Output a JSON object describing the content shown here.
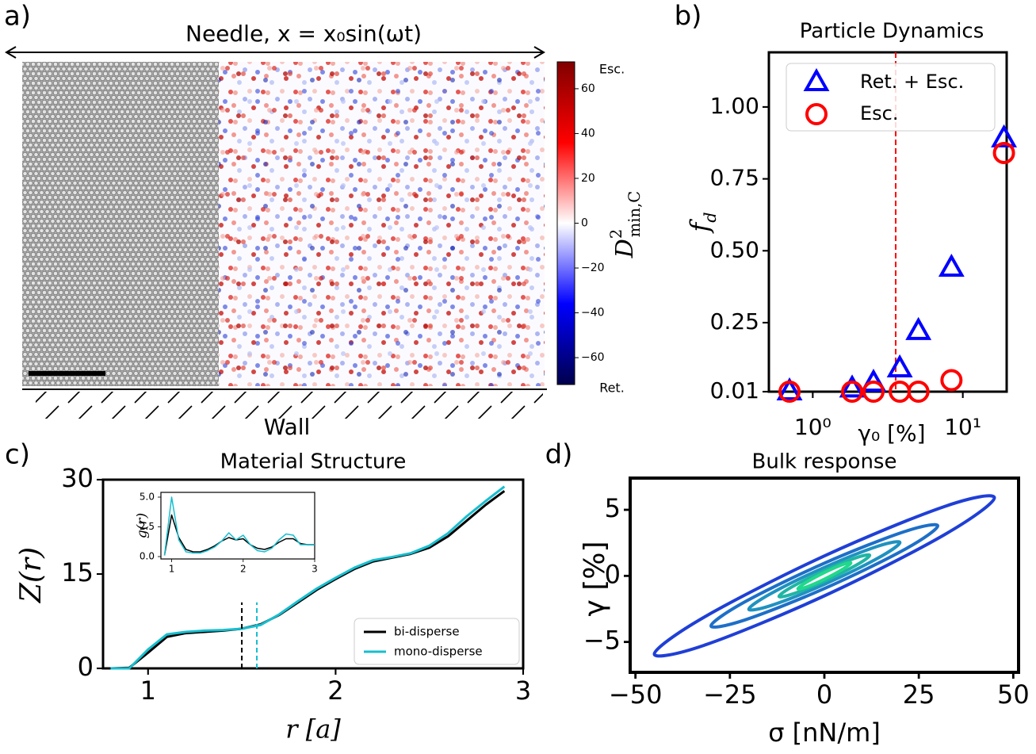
{
  "chart_data": [
    {
      "type": "image",
      "panel_label": "a)",
      "title": "Needle, x = x₀sin(ωt)",
      "bottom_label": "Wall",
      "colorbar": {
        "label": {
          "base": "D",
          "sup": "2",
          "sub": "min,C"
        },
        "lim": [
          -72,
          72
        ],
        "ticks": [
          {
            "value": -60,
            "label": "−60"
          },
          {
            "value": -40,
            "label": "−40"
          },
          {
            "value": -20,
            "label": "−20"
          },
          0,
          20,
          40,
          60
        ],
        "top_label": "Esc.",
        "bottom_label": "Ret."
      }
    },
    {
      "type": "scatter",
      "panel_label": "b)",
      "title": "Particle Dynamics",
      "xlabel": "γ₀ [%]",
      "ylabel": {
        "base": "f",
        "sub": "d"
      },
      "xscale": "log",
      "xlim": [
        0.51,
        19.6
      ],
      "xticks": [
        {
          "value": 1,
          "label": "10⁰"
        },
        {
          "value": 10,
          "label": "10¹"
        }
      ],
      "ylim": [
        0.01,
        1.19
      ],
      "yticks": [
        0.01,
        0.25,
        {
          "value": 0.5,
          "label": "0.50"
        },
        0.75,
        {
          "value": 1,
          "label": "1.00"
        }
      ],
      "legend": "upper left",
      "threshold_x": 3.57,
      "threshold_color": "#ff0000",
      "series": [
        {
          "name": "Ret. + Esc.",
          "color": "#0000ff",
          "marker": "triangle",
          "x": [
            0.7,
            1.83,
            2.54,
            3.8,
            5.06,
            8.4,
            18.8
          ],
          "values": [
            0.01,
            0.02,
            0.04,
            0.09,
            0.22,
            0.44,
            0.89
          ]
        },
        {
          "name": "Esc.",
          "color": "#ff0000",
          "marker": "circle",
          "x": [
            0.7,
            1.83,
            2.54,
            3.8,
            5.06,
            8.4,
            18.8
          ],
          "values": [
            0.01,
            0.01,
            0.01,
            0.01,
            0.01,
            0.05,
            0.84
          ]
        }
      ]
    },
    {
      "type": "line",
      "panel_label": "c)",
      "title": "Material Structure",
      "xlabel": "r [a]",
      "ylabel": "Z(r)",
      "xlim": [
        0.76,
        3
      ],
      "xticks": [
        1,
        2,
        3
      ],
      "ylim": [
        0,
        30
      ],
      "yticks": [
        0,
        15,
        30
      ],
      "legend": "lower right",
      "x": [
        0.8,
        0.9,
        1.0,
        1.1,
        1.2,
        1.3,
        1.4,
        1.5,
        1.6,
        1.7,
        1.8,
        1.9,
        2.0,
        2.1,
        2.2,
        2.3,
        2.4,
        2.5,
        2.6,
        2.7,
        2.8,
        2.9
      ],
      "series": [
        {
          "name": "bi-disperse",
          "color": "#000000",
          "values": [
            0,
            0.1,
            2.5,
            5.0,
            5.6,
            5.8,
            6.0,
            6.3,
            7.0,
            8.5,
            10.5,
            12.5,
            14.2,
            15.8,
            17.0,
            17.6,
            18.2,
            19.2,
            21.0,
            23.5,
            26.0,
            28.2
          ]
        },
        {
          "name": "mono-disperse",
          "color": "#17becf",
          "values": [
            0,
            0,
            3.0,
            5.4,
            5.8,
            6.0,
            6.1,
            6.3,
            6.9,
            8.6,
            10.7,
            12.7,
            14.4,
            16.0,
            17.2,
            17.7,
            18.3,
            19.5,
            21.5,
            24.2,
            26.6,
            28.9
          ]
        }
      ],
      "dashed_lines": [
        {
          "x": 1.5,
          "y": 10.5,
          "color": "#000000"
        },
        {
          "x": 1.58,
          "y": 10.5,
          "color": "#17becf"
        }
      ],
      "inset": {
        "ylabel": "g(r)",
        "xlim": [
          0.85,
          3
        ],
        "xticks": [
          1,
          2,
          3
        ],
        "ylim": [
          -0.2,
          5.4
        ],
        "yticks": [
          {
            "value": 0,
            "label": "0.0"
          },
          2.5,
          {
            "value": 5,
            "label": "5.0"
          }
        ],
        "x": [
          0.9,
          1.0,
          1.1,
          1.2,
          1.3,
          1.4,
          1.5,
          1.6,
          1.7,
          1.8,
          1.9,
          2.0,
          2.1,
          2.2,
          2.3,
          2.4,
          2.5,
          2.6,
          2.7,
          2.8,
          2.9,
          3.0
        ],
        "series": [
          {
            "color": "#000000",
            "values": [
              0.1,
              3.5,
              1.6,
              0.6,
              0.4,
              0.4,
              0.6,
              0.9,
              1.3,
              1.6,
              1.4,
              1.5,
              1.0,
              0.7,
              0.6,
              0.8,
              1.2,
              1.5,
              1.5,
              1.1,
              1.0,
              1.0
            ]
          },
          {
            "color": "#17becf",
            "values": [
              0.1,
              5.0,
              1.4,
              0.4,
              0.3,
              0.3,
              0.5,
              0.8,
              1.3,
              2.0,
              1.4,
              1.8,
              1.0,
              0.5,
              0.4,
              0.7,
              1.4,
              1.9,
              1.8,
              1.0,
              1.0,
              1.0
            ]
          }
        ]
      }
    },
    {
      "type": "line",
      "panel_label": "d)",
      "title": "Bulk response",
      "xlabel": "σ [nN/m]",
      "ylabel": "γ [%]",
      "closed": true,
      "xlim": [
        -51.4,
        51.4
      ],
      "xticks": [
        {
          "value": -50,
          "label": "−50"
        },
        {
          "value": -25,
          "label": "−25"
        },
        0,
        25,
        50
      ],
      "ylim": [
        -7.3,
        7.4
      ],
      "yticks": [
        {
          "value": -5,
          "label": "−5"
        },
        0,
        5
      ],
      "series": [
        {
          "color": "#1f3fd6",
          "x": [
            45,
            31.8,
            0,
            -31.8,
            -45,
            -31.8,
            0,
            31.8
          ],
          "values": [
            5.91,
            5.25,
            1.51,
            -3.12,
            -5.91,
            -5.25,
            -1.51,
            3.12
          ]
        },
        {
          "color": "#1d6fc8",
          "x": [
            30,
            21.2,
            0,
            -21.2,
            -30,
            -21.2,
            0,
            21.2
          ],
          "values": [
            3.78,
            3.35,
            0.96,
            -1.99,
            -3.78,
            -3.35,
            -0.96,
            1.99
          ]
        },
        {
          "color": "#1f92c0",
          "x": [
            20,
            14.1,
            0,
            -14.1,
            -20,
            -14.1,
            0,
            14.1
          ],
          "values": [
            2.52,
            2.24,
            0.64,
            -1.33,
            -2.52,
            -2.24,
            -0.64,
            1.33
          ]
        },
        {
          "color": "#20b5a4",
          "x": [
            12,
            8.5,
            0,
            -8.5,
            -12,
            -8.5,
            0,
            8.5
          ],
          "values": [
            1.55,
            1.38,
            0.4,
            -0.82,
            -1.55,
            -1.38,
            -0.4,
            0.82
          ]
        },
        {
          "color": "#22d88c",
          "x": [
            7,
            4.9,
            0,
            -4.9,
            -7,
            -4.9,
            0,
            4.9
          ],
          "values": [
            0.97,
            0.86,
            0.25,
            -0.51,
            -0.97,
            -0.86,
            -0.25,
            0.51
          ]
        }
      ]
    }
  ]
}
